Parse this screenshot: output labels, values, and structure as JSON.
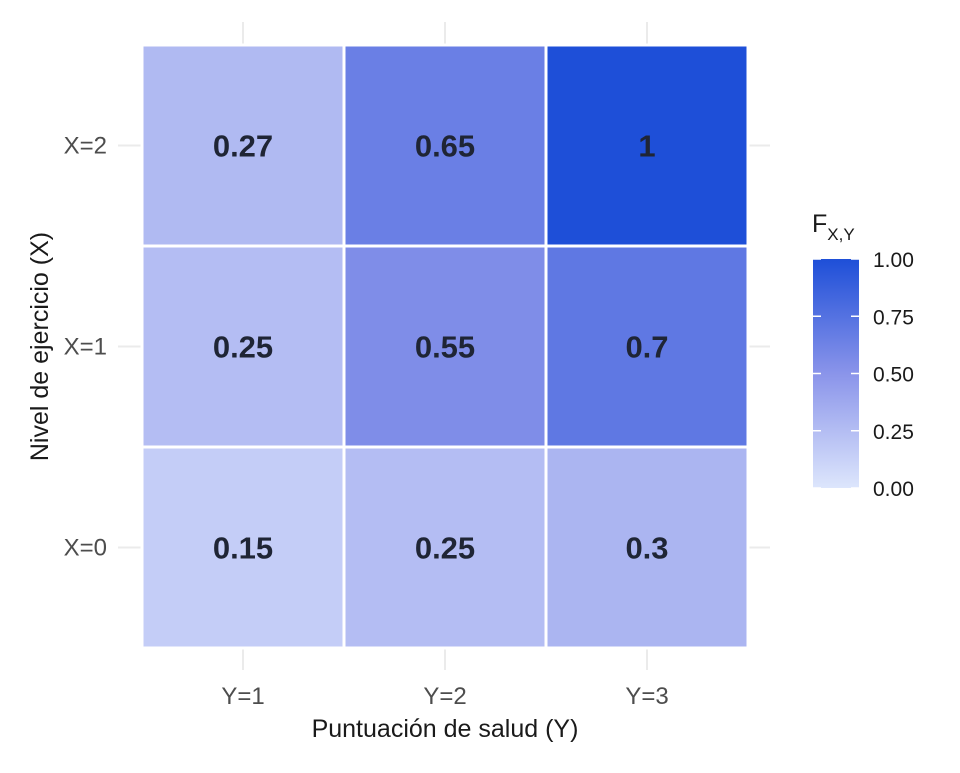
{
  "chart_data": {
    "type": "heatmap",
    "title": "",
    "xlabel": "Puntuación de salud (Y)",
    "ylabel": "Nivel de ejercicio (X)",
    "x_categories": [
      "Y=1",
      "Y=2",
      "Y=3"
    ],
    "y_categories": [
      "X=0",
      "X=1",
      "X=2"
    ],
    "values": [
      [
        0.15,
        0.25,
        0.3
      ],
      [
        0.25,
        0.55,
        0.7
      ],
      [
        0.27,
        0.65,
        1
      ]
    ],
    "value_labels": [
      [
        "0.15",
        "0.25",
        "0.3"
      ],
      [
        "0.25",
        "0.55",
        "0.7"
      ],
      [
        "0.27",
        "0.65",
        "1"
      ]
    ],
    "legend": {
      "title_main": "F",
      "title_sub": "X,Y",
      "range": [
        0,
        1
      ],
      "ticks": [
        "0.00",
        "0.25",
        "0.50",
        "0.75",
        "1.00"
      ],
      "color_low": "#dde6fc",
      "color_high": "#1e4fd8",
      "position": "right"
    },
    "grid": true
  }
}
